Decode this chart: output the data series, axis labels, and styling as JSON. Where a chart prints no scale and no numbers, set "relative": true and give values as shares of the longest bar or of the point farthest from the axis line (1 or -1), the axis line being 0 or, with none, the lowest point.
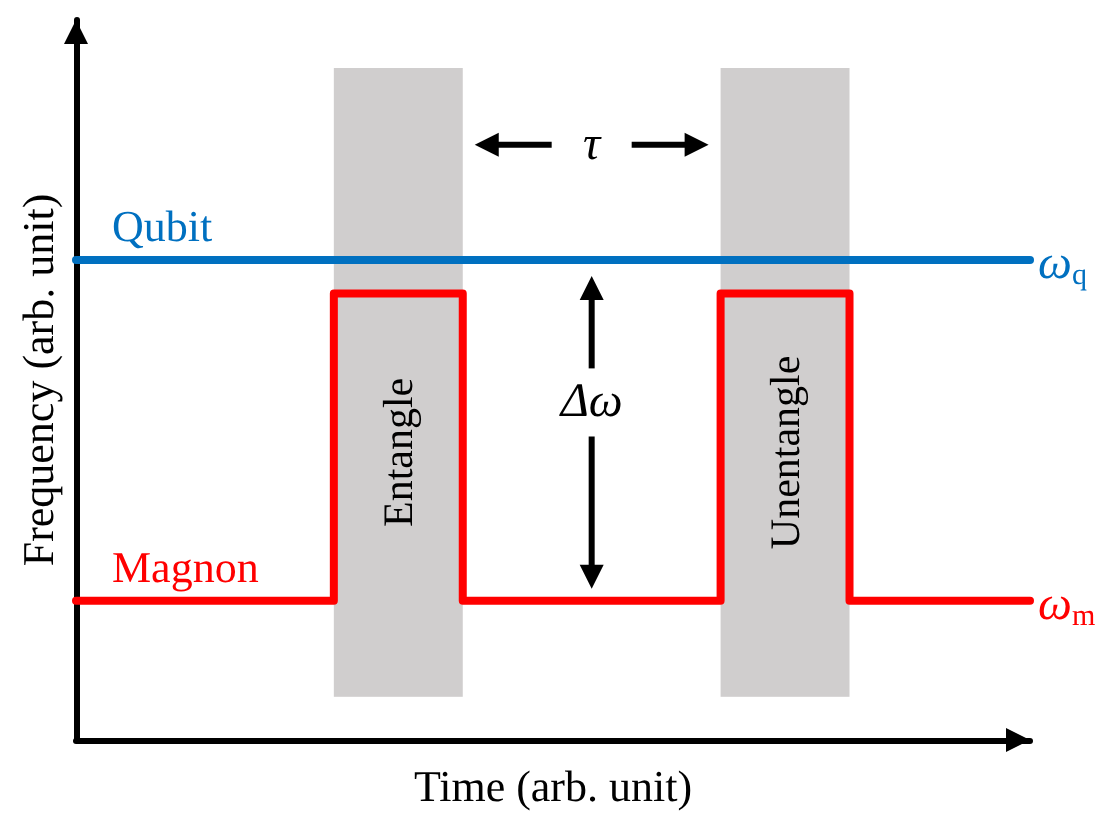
{
  "chart_data": {
    "type": "step",
    "relative": true,
    "xlabel": "Time (arb. unit)",
    "ylabel": "Frequency (arb. unit)",
    "categories": [
      null,
      null,
      null,
      null,
      null,
      null,
      null,
      null,
      null,
      null,
      null,
      null,
      null,
      null,
      null,
      null,
      null,
      null,
      null,
      null,
      null,
      null,
      null,
      null,
      null,
      null,
      null,
      null,
      null,
      null,
      null,
      null,
      null,
      null,
      null,
      null,
      null,
      null
    ],
    "series": [
      {
        "name": "Qubit",
        "type": "line",
        "color": "#0070c0",
        "values": [
          1,
          1,
          1,
          1,
          1,
          1,
          1,
          1,
          1,
          1,
          1,
          1,
          1,
          1,
          1,
          1,
          1,
          1,
          1,
          1,
          1,
          1,
          1,
          1,
          1,
          1,
          1,
          1,
          1,
          1,
          1,
          1,
          1,
          1,
          1,
          1,
          1,
          1
        ]
      },
      {
        "name": "Magnon",
        "color": "#ff0000",
        "values": [
          0.29,
          0.29,
          0.29,
          0.29,
          0.29,
          0.29,
          0.29,
          0.29,
          0.29,
          0.29,
          0.93,
          0.93,
          0.93,
          0.93,
          0.93,
          0.29,
          0.29,
          0.29,
          0.29,
          0.29,
          0.29,
          0.29,
          0.29,
          0.29,
          0.29,
          0.93,
          0.93,
          0.93,
          0.93,
          0.93,
          0.29,
          0.29,
          0.29,
          0.29,
          0.29,
          0.29,
          0.29,
          0.29
        ]
      }
    ],
    "annotations": [
      "Entangle",
      "Unentangle",
      "τ",
      "Δω",
      "ω$_{q}$",
      "ω$_{m}$"
    ],
    "legend": false,
    "grid": false,
    "marker": "none",
    "line_style": "solid",
    "tick_labels": false
  }
}
